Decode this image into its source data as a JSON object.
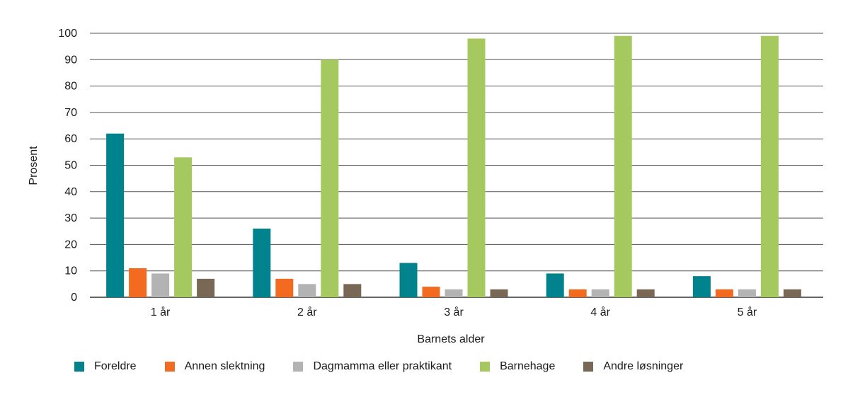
{
  "chart_data": {
    "type": "bar",
    "title": "",
    "xlabel": "Barnets alder",
    "ylabel": "Prosent",
    "ylim": [
      0,
      100
    ],
    "yticks": [
      0,
      10,
      20,
      30,
      40,
      50,
      60,
      70,
      80,
      90,
      100
    ],
    "grid": true,
    "legend_position": "bottom",
    "categories": [
      "1 år",
      "2 år",
      "3 år",
      "4 år",
      "5 år"
    ],
    "series": [
      {
        "name": "Foreldre",
        "color": "#00838d",
        "values": [
          62,
          26,
          13,
          9,
          8
        ]
      },
      {
        "name": "Annen slektning",
        "color": "#f26b21",
        "values": [
          11,
          7,
          4,
          3,
          3
        ]
      },
      {
        "name": "Dagmamma eller praktikant",
        "color": "#b3b3b3",
        "values": [
          9,
          5,
          3,
          3,
          3
        ]
      },
      {
        "name": "Barnehage",
        "color": "#a6c95f",
        "values": [
          53,
          90,
          98,
          99,
          99
        ]
      },
      {
        "name": "Andre løsninger",
        "color": "#7a6856",
        "values": [
          7,
          5,
          3,
          3,
          3
        ]
      }
    ]
  }
}
